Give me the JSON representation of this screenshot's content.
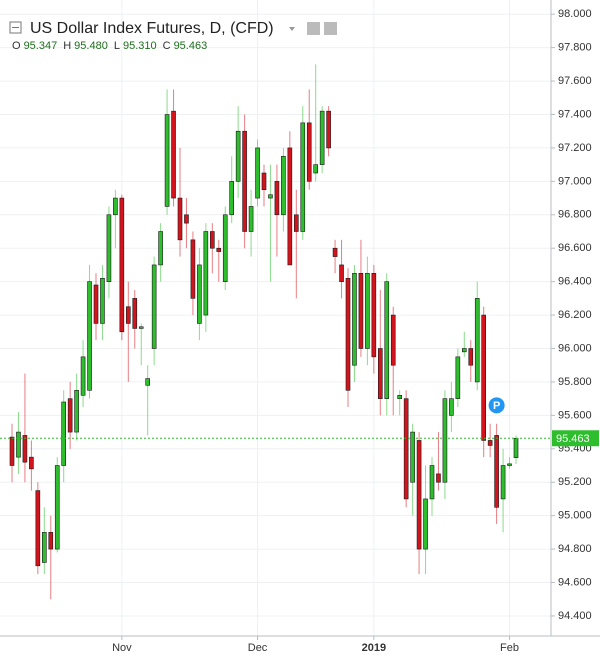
{
  "chart_data": {
    "type": "candlestick",
    "title": "US Dollar Index Futures, D, (CFD)",
    "header_ohlc": [
      {
        "key": "O",
        "text": "95.347"
      },
      {
        "key": "H",
        "text": "95.480"
      },
      {
        "key": "L",
        "text": "95.310"
      },
      {
        "key": "C",
        "text": "95.463"
      }
    ],
    "marker": {
      "label": "P",
      "index": 75,
      "value": 95.66
    },
    "up_color": "#2dbd2d",
    "down_color": "#d3141d",
    "categories": [
      null,
      null,
      null,
      null,
      null,
      null,
      null,
      null,
      null,
      null,
      null,
      null,
      null,
      null,
      null,
      null,
      null,
      "Nov",
      null,
      null,
      null,
      null,
      null,
      null,
      null,
      null,
      null,
      null,
      null,
      null,
      null,
      null,
      null,
      null,
      null,
      null,
      null,
      null,
      "Dec",
      null,
      null,
      null,
      null,
      null,
      null,
      null,
      null,
      null,
      null,
      null,
      null,
      null,
      null,
      null,
      null,
      null,
      "2019",
      null,
      null,
      null,
      null,
      null,
      null,
      null,
      null,
      null,
      null,
      null,
      null,
      null,
      null,
      null,
      null,
      null,
      null,
      null,
      null,
      "Feb",
      null
    ],
    "open": [
      95.47,
      95.35,
      95.48,
      95.35,
      95.15,
      94.72,
      94.9,
      94.8,
      95.3,
      95.7,
      95.5,
      95.72,
      95.75,
      96.38,
      96.15,
      96.4,
      96.8,
      96.9,
      96.25,
      96.3,
      96.12,
      95.78,
      96.0,
      96.5,
      96.85,
      97.42,
      96.9,
      96.8,
      96.65,
      96.15,
      96.2,
      96.7,
      96.6,
      96.4,
      96.8,
      97.0,
      97.3,
      96.7,
      96.9,
      97.05,
      96.9,
      97.0,
      96.8,
      97.2,
      96.8,
      96.7,
      97.35,
      97.05,
      97.1,
      97.42,
      96.6,
      96.5,
      96.42,
      95.9,
      96.45,
      96.0,
      96.45,
      96.0,
      95.7,
      96.2,
      95.7,
      95.7,
      95.2,
      95.45,
      94.8,
      95.1,
      95.25,
      95.2,
      95.6,
      95.7,
      95.98,
      96.0,
      95.8,
      96.2,
      95.45,
      95.48,
      95.1,
      95.3,
      95.347
    ],
    "high": [
      95.55,
      95.62,
      95.85,
      95.45,
      95.2,
      95.05,
      95.0,
      95.35,
      95.75,
      95.8,
      95.85,
      96.05,
      96.5,
      96.45,
      96.5,
      96.85,
      96.95,
      96.92,
      96.4,
      96.35,
      96.15,
      95.9,
      96.55,
      96.75,
      97.55,
      97.55,
      97.2,
      96.9,
      96.7,
      96.6,
      96.75,
      96.75,
      96.65,
      96.85,
      97.15,
      97.45,
      97.4,
      96.95,
      97.25,
      97.1,
      97.1,
      97.1,
      97.2,
      97.3,
      96.95,
      97.45,
      97.55,
      97.7,
      97.45,
      97.45,
      96.65,
      96.65,
      96.48,
      96.5,
      96.65,
      96.55,
      96.5,
      96.35,
      96.45,
      96.25,
      95.75,
      95.75,
      95.55,
      95.5,
      95.3,
      95.35,
      95.5,
      95.75,
      95.8,
      96.0,
      96.1,
      96.05,
      96.4,
      96.25,
      95.55,
      95.55,
      95.4,
      95.35,
      95.48
    ],
    "low": [
      95.2,
      95.25,
      95.2,
      95.15,
      94.65,
      94.65,
      94.5,
      94.78,
      95.2,
      95.4,
      95.45,
      95.65,
      95.7,
      96.05,
      96.05,
      96.3,
      96.6,
      96.05,
      95.8,
      96.0,
      95.9,
      95.48,
      95.9,
      96.4,
      96.8,
      96.85,
      96.55,
      96.6,
      96.2,
      96.05,
      96.1,
      96.45,
      96.4,
      96.35,
      96.75,
      96.9,
      96.6,
      96.55,
      96.85,
      96.85,
      96.4,
      96.55,
      96.7,
      96.5,
      96.3,
      96.65,
      96.95,
      97.0,
      97.05,
      97.15,
      96.45,
      96.3,
      95.65,
      95.8,
      95.95,
      95.9,
      95.85,
      95.6,
      95.6,
      95.6,
      95.6,
      95.05,
      95.0,
      94.65,
      94.65,
      95.0,
      95.15,
      95.1,
      95.5,
      95.65,
      95.95,
      95.8,
      95.75,
      95.35,
      95.35,
      94.95,
      94.9,
      95.28,
      95.31
    ],
    "close": [
      95.3,
      95.5,
      95.32,
      95.28,
      94.7,
      94.9,
      94.8,
      95.3,
      95.68,
      95.5,
      95.75,
      95.95,
      96.4,
      96.15,
      96.42,
      96.8,
      96.9,
      96.1,
      96.15,
      96.12,
      96.13,
      95.82,
      96.5,
      96.7,
      97.4,
      96.9,
      96.65,
      96.75,
      96.3,
      96.5,
      96.7,
      96.6,
      96.58,
      96.8,
      97.0,
      97.3,
      96.7,
      96.85,
      97.2,
      96.95,
      96.92,
      96.8,
      97.15,
      96.5,
      96.7,
      97.35,
      97.0,
      97.1,
      97.42,
      97.2,
      96.55,
      96.4,
      95.75,
      96.45,
      96.0,
      96.45,
      95.95,
      95.7,
      96.4,
      95.9,
      95.72,
      95.1,
      95.5,
      94.8,
      95.1,
      95.3,
      95.2,
      95.7,
      95.7,
      95.95,
      96.0,
      95.9,
      96.3,
      95.45,
      95.42,
      95.05,
      95.3,
      95.31,
      95.463
    ],
    "ylim": [
      94.28,
      98.085
    ],
    "yticks": [
      {
        "value": 94.4,
        "label": "94.400"
      },
      {
        "value": 94.6,
        "label": "94.600"
      },
      {
        "value": 94.8,
        "label": "94.800"
      },
      {
        "value": 95.0,
        "label": "95.000"
      },
      {
        "value": 95.2,
        "label": "95.200"
      },
      {
        "value": 95.4,
        "label": "95.400"
      },
      {
        "value": 95.6,
        "label": "95.600"
      },
      {
        "value": 95.8,
        "label": "95.800"
      },
      {
        "value": 96.0,
        "label": "96.000"
      },
      {
        "value": 96.2,
        "label": "96.200"
      },
      {
        "value": 96.4,
        "label": "96.400"
      },
      {
        "value": 96.6,
        "label": "96.600"
      },
      {
        "value": 96.8,
        "label": "96.800"
      },
      {
        "value": 97.0,
        "label": "97.000"
      },
      {
        "value": 97.2,
        "label": "97.200"
      },
      {
        "value": 97.4,
        "label": "97.400"
      },
      {
        "value": 97.6,
        "label": "97.600"
      },
      {
        "value": 97.8,
        "label": "97.800"
      },
      {
        "value": 98.0,
        "label": "98.000"
      }
    ],
    "grid": true
  }
}
